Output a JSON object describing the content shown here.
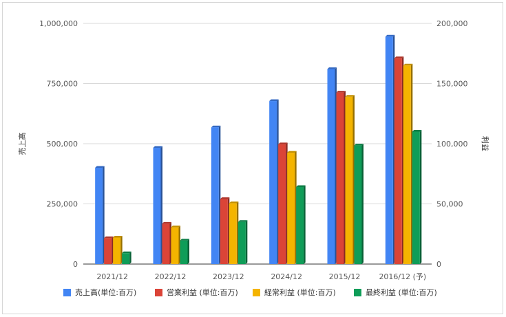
{
  "chart_data": {
    "type": "bar",
    "categories": [
      "2021/12",
      "2022/12",
      "2023/12",
      "2024/12",
      "2015/12",
      "2016/12 (予)"
    ],
    "series": [
      {
        "name": "売上高(単位:百万)",
        "axis": "left",
        "color": "#4285F4",
        "values": [
          400000,
          483000,
          568000,
          677000,
          810000,
          945000
        ]
      },
      {
        "name": "営業利益 (単位:百万)",
        "axis": "right",
        "color": "#DB4437",
        "values": [
          21500,
          33500,
          54000,
          99500,
          142500,
          171000
        ]
      },
      {
        "name": "経常利益 (単位:百万)",
        "axis": "right",
        "color": "#F4B400",
        "values": [
          22000,
          30500,
          50500,
          92500,
          139000,
          165000
        ]
      },
      {
        "name": "最終利益 (単位:百万)",
        "axis": "right",
        "color": "#0F9D58",
        "values": [
          9000,
          19500,
          35000,
          64000,
          98500,
          110000
        ]
      }
    ],
    "ylabel": "売上高",
    "y2label": "利益",
    "ylim": [
      0,
      1000000
    ],
    "y2lim": [
      0,
      200000
    ],
    "yticks": [
      "0",
      "250,000",
      "500,000",
      "750,000",
      "1,000,000"
    ],
    "y2ticks": [
      "0",
      "50,000",
      "100,000",
      "150,000",
      "200,000"
    ],
    "grid": true,
    "legend_position": "bottom"
  }
}
